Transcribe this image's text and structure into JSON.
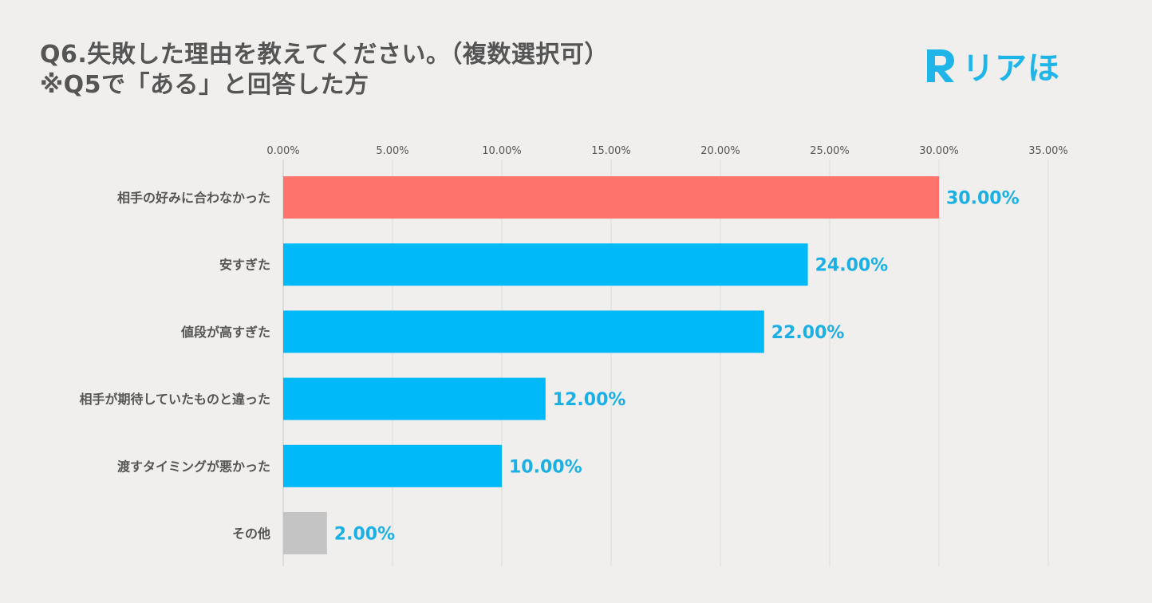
{
  "title": {
    "line1": "Q6.失敗した理由を教えてください。（複数選択可）",
    "line2": "※Q5で「ある」と回答した方"
  },
  "logo": {
    "icon": "r-letter-icon",
    "text": "リアほ",
    "color": "#1fb5e8"
  },
  "chart_data": {
    "type": "bar",
    "orientation": "horizontal",
    "categories": [
      "相手の好みに合わなかった",
      "安すぎた",
      "値段が高すぎた",
      "相手が期待していたものと違った",
      "渡すタイミングが悪かった",
      "その他"
    ],
    "values": [
      30.0,
      24.0,
      22.0,
      12.0,
      10.0,
      2.0
    ],
    "value_labels": [
      "30.00%",
      "24.00%",
      "22.00%",
      "12.00%",
      "10.00%",
      "2.00%"
    ],
    "bar_colors": [
      "#ff736d",
      "#00b9f8",
      "#00b9f8",
      "#00b9f8",
      "#00b9f8",
      "#c4c4c4"
    ],
    "label_color": "#1ab0e6",
    "xlim": [
      0,
      35
    ],
    "ticks": [
      0,
      5,
      10,
      15,
      20,
      25,
      30,
      35
    ],
    "tick_labels": [
      "0.00%",
      "5.00%",
      "10.00%",
      "15.00%",
      "20.00%",
      "25.00%",
      "30.00%",
      "35.00%"
    ],
    "axis_position": "top",
    "grid": true
  }
}
